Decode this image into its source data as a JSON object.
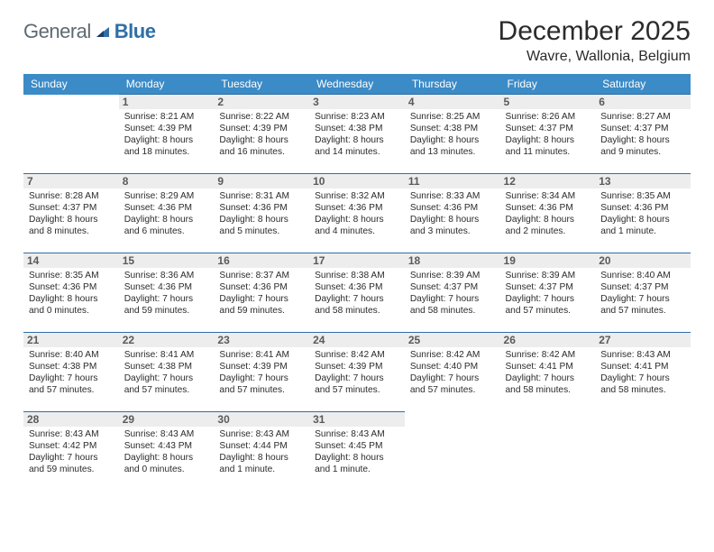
{
  "brand": {
    "general": "General",
    "blue": "Blue"
  },
  "header": {
    "month_title": "December 2025",
    "location": "Wavre, Wallonia, Belgium"
  },
  "style": {
    "header_bg": "#3b8bc7",
    "header_text": "#ffffff",
    "cell_border": "#2f6fa7",
    "daynum_bg": "#ededed",
    "daynum_color": "#5a5a5a",
    "body_text": "#2b2b2b",
    "logo_gray": "#5e6a72",
    "logo_blue": "#2f6fa7",
    "page_bg": "#ffffff",
    "info_fontsize": 10.2,
    "header_fontsize": 12,
    "title_fontsize": 30,
    "location_fontsize": 16
  },
  "weekdays": [
    "Sunday",
    "Monday",
    "Tuesday",
    "Wednesday",
    "Thursday",
    "Friday",
    "Saturday"
  ],
  "weeks": [
    [
      null,
      {
        "n": "1",
        "sr": "Sunrise: 8:21 AM",
        "ss": "Sunset: 4:39 PM",
        "d1": "Daylight: 8 hours",
        "d2": "and 18 minutes."
      },
      {
        "n": "2",
        "sr": "Sunrise: 8:22 AM",
        "ss": "Sunset: 4:39 PM",
        "d1": "Daylight: 8 hours",
        "d2": "and 16 minutes."
      },
      {
        "n": "3",
        "sr": "Sunrise: 8:23 AM",
        "ss": "Sunset: 4:38 PM",
        "d1": "Daylight: 8 hours",
        "d2": "and 14 minutes."
      },
      {
        "n": "4",
        "sr": "Sunrise: 8:25 AM",
        "ss": "Sunset: 4:38 PM",
        "d1": "Daylight: 8 hours",
        "d2": "and 13 minutes."
      },
      {
        "n": "5",
        "sr": "Sunrise: 8:26 AM",
        "ss": "Sunset: 4:37 PM",
        "d1": "Daylight: 8 hours",
        "d2": "and 11 minutes."
      },
      {
        "n": "6",
        "sr": "Sunrise: 8:27 AM",
        "ss": "Sunset: 4:37 PM",
        "d1": "Daylight: 8 hours",
        "d2": "and 9 minutes."
      }
    ],
    [
      {
        "n": "7",
        "sr": "Sunrise: 8:28 AM",
        "ss": "Sunset: 4:37 PM",
        "d1": "Daylight: 8 hours",
        "d2": "and 8 minutes."
      },
      {
        "n": "8",
        "sr": "Sunrise: 8:29 AM",
        "ss": "Sunset: 4:36 PM",
        "d1": "Daylight: 8 hours",
        "d2": "and 6 minutes."
      },
      {
        "n": "9",
        "sr": "Sunrise: 8:31 AM",
        "ss": "Sunset: 4:36 PM",
        "d1": "Daylight: 8 hours",
        "d2": "and 5 minutes."
      },
      {
        "n": "10",
        "sr": "Sunrise: 8:32 AM",
        "ss": "Sunset: 4:36 PM",
        "d1": "Daylight: 8 hours",
        "d2": "and 4 minutes."
      },
      {
        "n": "11",
        "sr": "Sunrise: 8:33 AM",
        "ss": "Sunset: 4:36 PM",
        "d1": "Daylight: 8 hours",
        "d2": "and 3 minutes."
      },
      {
        "n": "12",
        "sr": "Sunrise: 8:34 AM",
        "ss": "Sunset: 4:36 PM",
        "d1": "Daylight: 8 hours",
        "d2": "and 2 minutes."
      },
      {
        "n": "13",
        "sr": "Sunrise: 8:35 AM",
        "ss": "Sunset: 4:36 PM",
        "d1": "Daylight: 8 hours",
        "d2": "and 1 minute."
      }
    ],
    [
      {
        "n": "14",
        "sr": "Sunrise: 8:35 AM",
        "ss": "Sunset: 4:36 PM",
        "d1": "Daylight: 8 hours",
        "d2": "and 0 minutes."
      },
      {
        "n": "15",
        "sr": "Sunrise: 8:36 AM",
        "ss": "Sunset: 4:36 PM",
        "d1": "Daylight: 7 hours",
        "d2": "and 59 minutes."
      },
      {
        "n": "16",
        "sr": "Sunrise: 8:37 AM",
        "ss": "Sunset: 4:36 PM",
        "d1": "Daylight: 7 hours",
        "d2": "and 59 minutes."
      },
      {
        "n": "17",
        "sr": "Sunrise: 8:38 AM",
        "ss": "Sunset: 4:36 PM",
        "d1": "Daylight: 7 hours",
        "d2": "and 58 minutes."
      },
      {
        "n": "18",
        "sr": "Sunrise: 8:39 AM",
        "ss": "Sunset: 4:37 PM",
        "d1": "Daylight: 7 hours",
        "d2": "and 58 minutes."
      },
      {
        "n": "19",
        "sr": "Sunrise: 8:39 AM",
        "ss": "Sunset: 4:37 PM",
        "d1": "Daylight: 7 hours",
        "d2": "and 57 minutes."
      },
      {
        "n": "20",
        "sr": "Sunrise: 8:40 AM",
        "ss": "Sunset: 4:37 PM",
        "d1": "Daylight: 7 hours",
        "d2": "and 57 minutes."
      }
    ],
    [
      {
        "n": "21",
        "sr": "Sunrise: 8:40 AM",
        "ss": "Sunset: 4:38 PM",
        "d1": "Daylight: 7 hours",
        "d2": "and 57 minutes."
      },
      {
        "n": "22",
        "sr": "Sunrise: 8:41 AM",
        "ss": "Sunset: 4:38 PM",
        "d1": "Daylight: 7 hours",
        "d2": "and 57 minutes."
      },
      {
        "n": "23",
        "sr": "Sunrise: 8:41 AM",
        "ss": "Sunset: 4:39 PM",
        "d1": "Daylight: 7 hours",
        "d2": "and 57 minutes."
      },
      {
        "n": "24",
        "sr": "Sunrise: 8:42 AM",
        "ss": "Sunset: 4:39 PM",
        "d1": "Daylight: 7 hours",
        "d2": "and 57 minutes."
      },
      {
        "n": "25",
        "sr": "Sunrise: 8:42 AM",
        "ss": "Sunset: 4:40 PM",
        "d1": "Daylight: 7 hours",
        "d2": "and 57 minutes."
      },
      {
        "n": "26",
        "sr": "Sunrise: 8:42 AM",
        "ss": "Sunset: 4:41 PM",
        "d1": "Daylight: 7 hours",
        "d2": "and 58 minutes."
      },
      {
        "n": "27",
        "sr": "Sunrise: 8:43 AM",
        "ss": "Sunset: 4:41 PM",
        "d1": "Daylight: 7 hours",
        "d2": "and 58 minutes."
      }
    ],
    [
      {
        "n": "28",
        "sr": "Sunrise: 8:43 AM",
        "ss": "Sunset: 4:42 PM",
        "d1": "Daylight: 7 hours",
        "d2": "and 59 minutes."
      },
      {
        "n": "29",
        "sr": "Sunrise: 8:43 AM",
        "ss": "Sunset: 4:43 PM",
        "d1": "Daylight: 8 hours",
        "d2": "and 0 minutes."
      },
      {
        "n": "30",
        "sr": "Sunrise: 8:43 AM",
        "ss": "Sunset: 4:44 PM",
        "d1": "Daylight: 8 hours",
        "d2": "and 1 minute."
      },
      {
        "n": "31",
        "sr": "Sunrise: 8:43 AM",
        "ss": "Sunset: 4:45 PM",
        "d1": "Daylight: 8 hours",
        "d2": "and 1 minute."
      },
      null,
      null,
      null
    ]
  ]
}
